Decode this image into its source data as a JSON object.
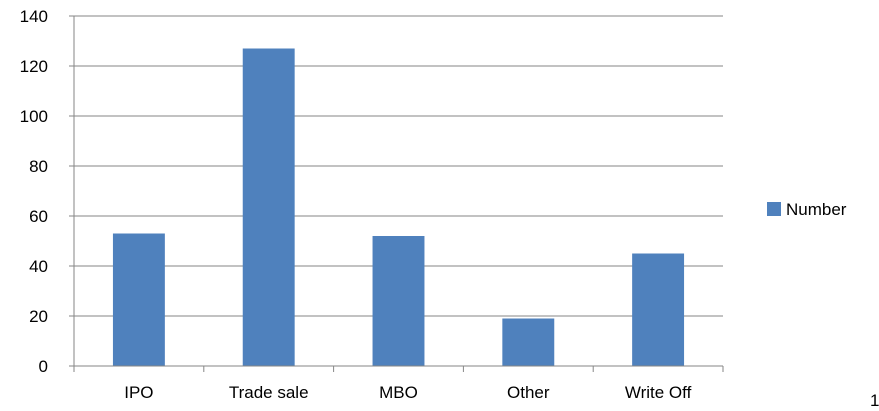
{
  "chart_data": {
    "type": "bar",
    "categories": [
      "IPO",
      "Trade sale",
      "MBO",
      "Other",
      "Write Off"
    ],
    "series": [
      {
        "name": "Number",
        "values": [
          53,
          127,
          52,
          19,
          45
        ]
      }
    ],
    "title": "",
    "xlabel": "",
    "ylabel": "",
    "ylim": [
      0,
      140
    ],
    "yticks": [
      0,
      20,
      40,
      60,
      80,
      100,
      120,
      140
    ],
    "grid": true,
    "legend": "right",
    "colors": {
      "bar": "#4f81bd",
      "grid": "#868686",
      "axis": "#868686"
    }
  },
  "page": {
    "corner_text": "1"
  }
}
